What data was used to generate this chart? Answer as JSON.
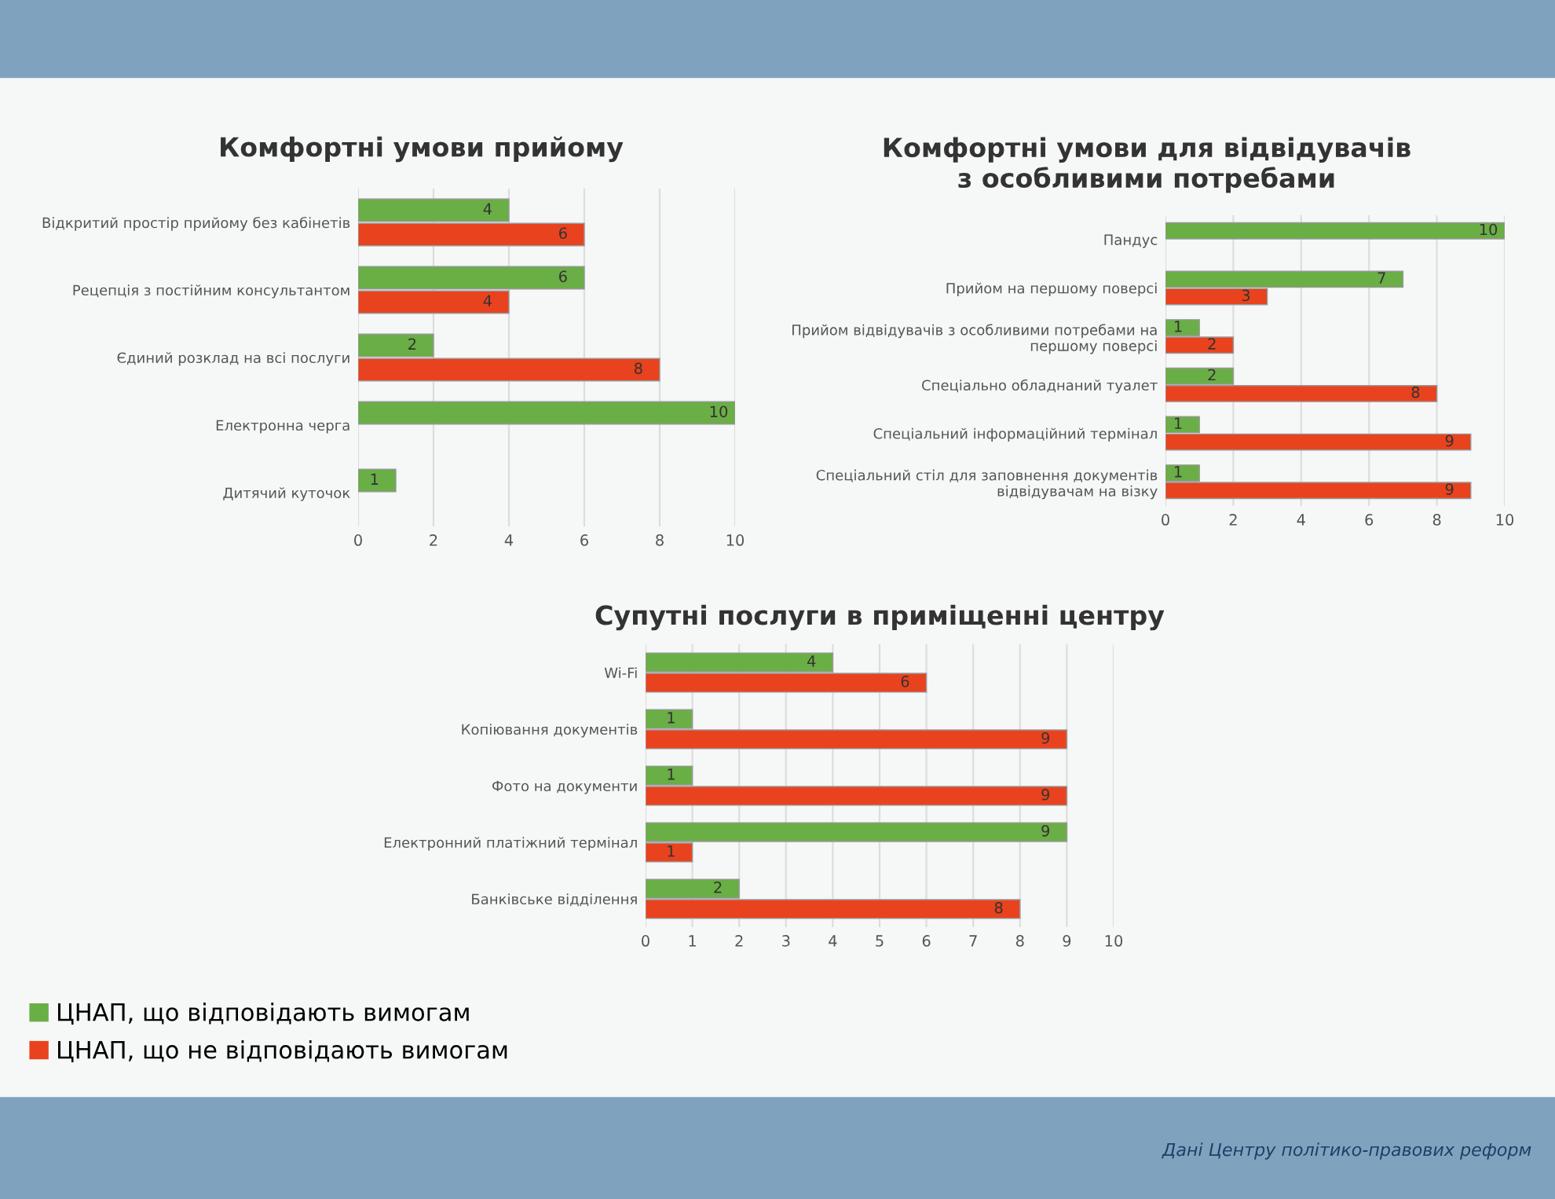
{
  "chart_data": [
    {
      "type": "bar",
      "orientation": "horizontal",
      "title": "Комфортні умови прийому",
      "categories": [
        "Відкритий простір прийому без кабінетів",
        "Рецепція з постійним консультантом",
        "Єдиний розклад на всі послуги",
        "Електронна черга",
        "Дитячий куточок"
      ],
      "series": [
        {
          "color": "#6aae46",
          "values": [
            4,
            6,
            2,
            10,
            1
          ]
        },
        {
          "color": "#e8431e",
          "values": [
            6,
            4,
            8,
            null,
            null
          ]
        }
      ],
      "xlim": [
        0,
        10
      ],
      "xticks": [
        0,
        2,
        4,
        6,
        8,
        10
      ],
      "grid": "x",
      "data_labels": true
    },
    {
      "type": "bar",
      "orientation": "horizontal",
      "title": "Комфортні умови для відвідувачів\nз особливими потребами",
      "categories": [
        "Пандус",
        "Прийом на першому поверсі",
        "Прийом відвідувачів з особливими потребами на\nпершому поверсі",
        "Спеціально обладнаний туалет",
        "Спеціальний інформаційний термінал",
        "Спеціальний стіл для заповнення документів\nвідвідувачам на візку"
      ],
      "series": [
        {
          "color": "#6aae46",
          "values": [
            10,
            7,
            1,
            2,
            1,
            1
          ]
        },
        {
          "color": "#e8431e",
          "values": [
            null,
            3,
            2,
            8,
            9,
            9
          ]
        }
      ],
      "xlim": [
        0,
        10
      ],
      "xticks": [
        0,
        2,
        4,
        6,
        8,
        10
      ],
      "grid": "x",
      "data_labels": true
    },
    {
      "type": "bar",
      "orientation": "horizontal",
      "title": "Супутні послуги в приміщенні центру",
      "categories": [
        "Wi-Fi",
        "Копіювання документів",
        "Фото на документи",
        "Електронний платіжний термінал",
        "Банківське відділення"
      ],
      "series": [
        {
          "name": "ЦНАП, що відповідають вимогам",
          "color": "#6aae46",
          "values": [
            4,
            1,
            1,
            9,
            2
          ]
        },
        {
          "name": "ЦНАП, що не відповідають вимогам",
          "color": "#e8431e",
          "values": [
            6,
            9,
            9,
            1,
            8
          ]
        }
      ],
      "xlim": [
        0,
        10
      ],
      "xticks": [
        0,
        1,
        2,
        3,
        4,
        5,
        6,
        7,
        8,
        9,
        10
      ],
      "grid": "x",
      "data_labels": true,
      "legend": "bottom left",
      "annotations": [
        "Дані Центру політико-правових реформ"
      ]
    }
  ]
}
